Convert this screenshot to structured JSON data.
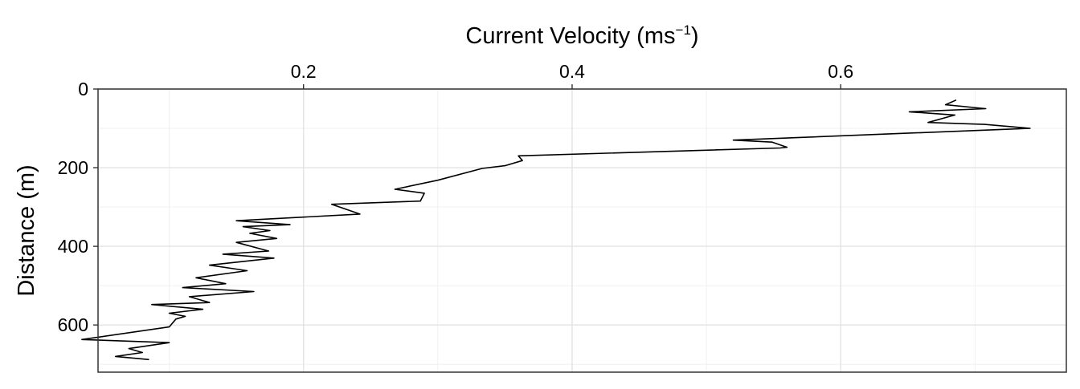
{
  "chart_data": {
    "type": "line",
    "title": "",
    "xlabel": "Current Velocity",
    "xlabel_unit_base": "ms",
    "xlabel_unit_exp": "−1",
    "ylabel": "Distance (m)",
    "x_axis_position": "top",
    "y_axis_reversed": true,
    "xlim": [
      0.047,
      0.768
    ],
    "ylim": [
      0,
      720
    ],
    "x_ticks": [
      0.2,
      0.4,
      0.6
    ],
    "x_tick_labels": [
      "0.2",
      "0.4",
      "0.6"
    ],
    "y_ticks": [
      0,
      200,
      400,
      600
    ],
    "y_tick_labels": [
      "0",
      "200",
      "400",
      "600"
    ],
    "grid": true,
    "legend": "none",
    "line_color": "#000000",
    "series": [
      {
        "x": [
          0.686,
          0.678,
          0.708,
          0.651,
          0.685,
          0.665,
          0.707,
          0.741,
          0.52,
          0.549,
          0.56,
          0.555,
          0.36,
          0.363,
          0.35,
          0.333,
          0.3,
          0.268,
          0.29,
          0.287,
          0.221,
          0.242,
          0.15,
          0.19,
          0.155,
          0.175,
          0.16,
          0.18,
          0.15,
          0.174,
          0.14,
          0.178,
          0.13,
          0.158,
          0.12,
          0.142,
          0.11,
          0.163,
          0.115,
          0.13,
          0.087,
          0.125,
          0.1,
          0.112,
          0.105,
          0.1,
          0.035,
          0.1,
          0.07,
          0.08,
          0.06,
          0.085
        ],
        "y": [
          28,
          40,
          50,
          58,
          66,
          85,
          90,
          100,
          130,
          135,
          148,
          150,
          170,
          182,
          195,
          202,
          232,
          255,
          265,
          285,
          293,
          318,
          335,
          345,
          350,
          360,
          367,
          380,
          390,
          412,
          420,
          430,
          448,
          462,
          480,
          495,
          505,
          515,
          528,
          543,
          548,
          560,
          570,
          578,
          585,
          605,
          637,
          645,
          660,
          670,
          680,
          688
        ]
      }
    ]
  }
}
